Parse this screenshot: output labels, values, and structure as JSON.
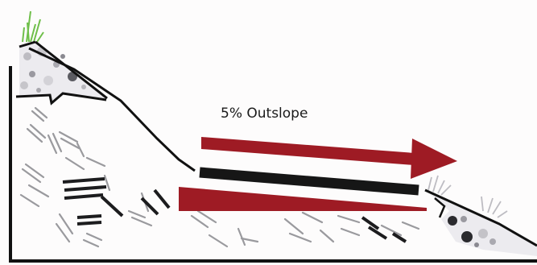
{
  "diagram": {
    "label": "5% Outslope"
  },
  "colors": {
    "arrow": "#9e1b24",
    "road": "#161616",
    "slope_line": "#111111",
    "soil_fill": "#ecebef",
    "rock_dark": "#2a2a2e",
    "rock_mid": "#8a8a90",
    "rock_light": "#c4c3c8",
    "grass": "#6fbf4a",
    "debris": "#9a9a9e"
  }
}
